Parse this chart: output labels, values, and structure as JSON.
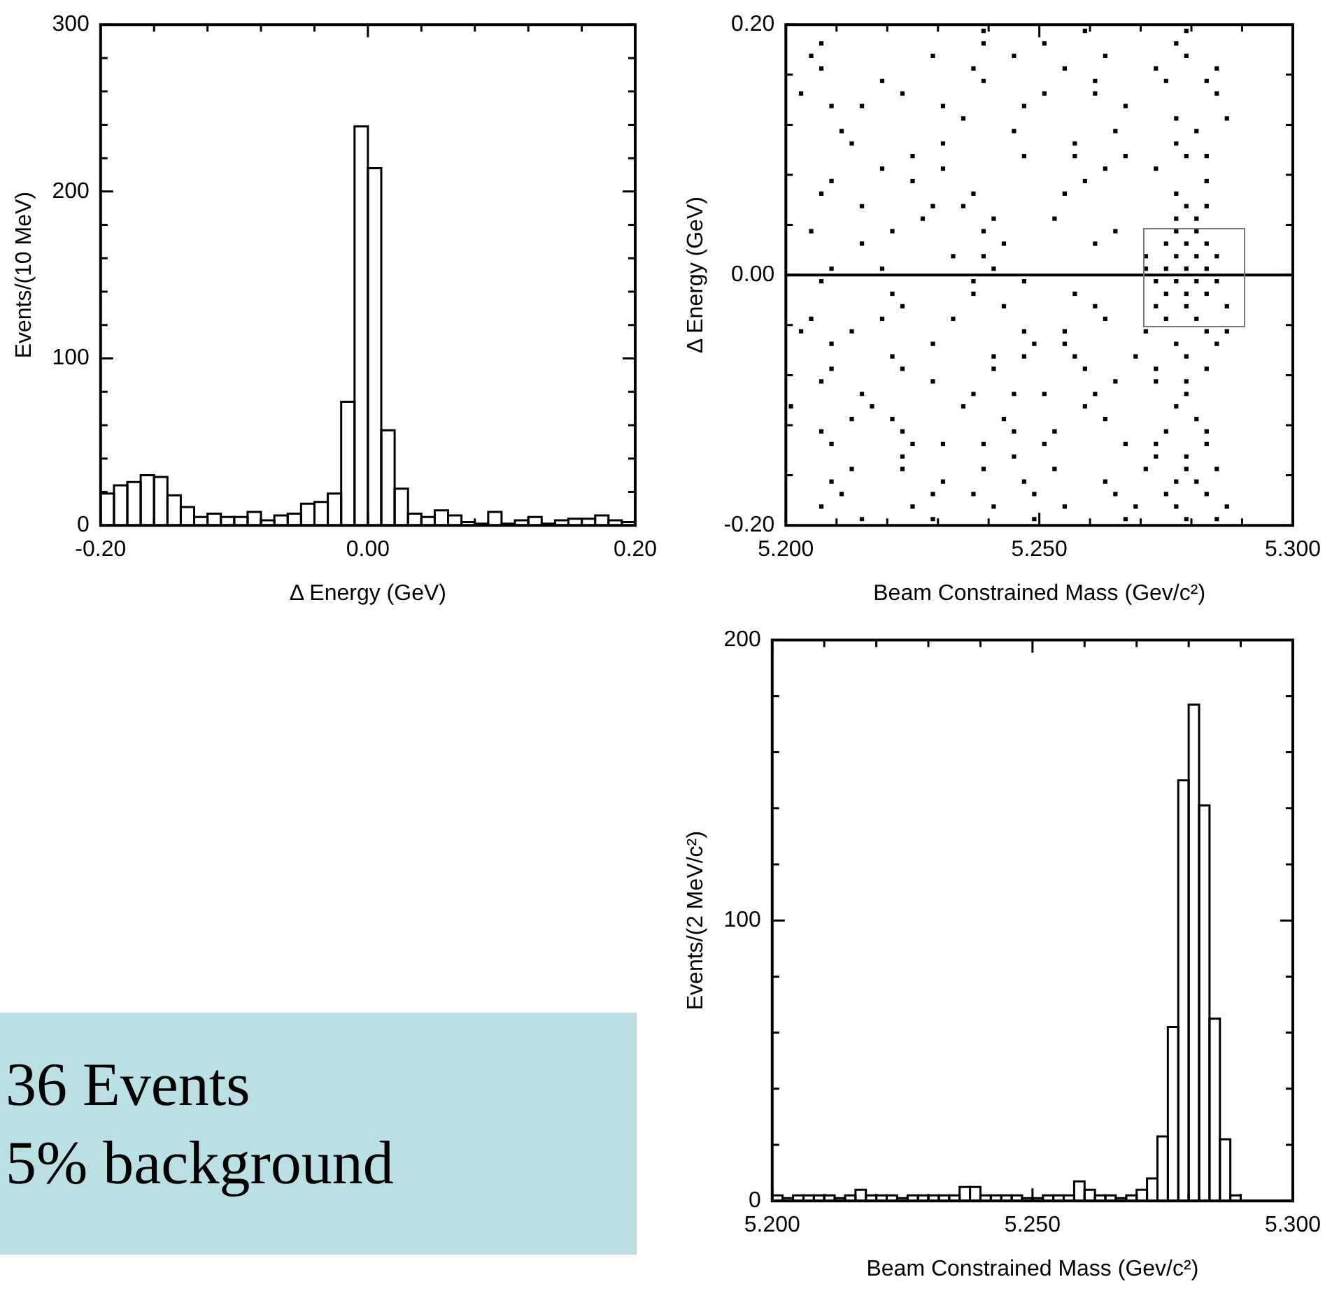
{
  "chart_data": [
    {
      "type": "histogram",
      "xlabel": "Δ Energy (GeV)",
      "ylabel": "Events/(10 MeV)",
      "color": "#000000",
      "bins": [
        -0.2,
        -0.19,
        -0.18,
        -0.17,
        -0.16,
        -0.15,
        -0.14,
        -0.13,
        -0.12,
        -0.11,
        -0.1,
        -0.09,
        -0.08,
        -0.07,
        -0.06,
        -0.05,
        -0.04,
        -0.03,
        -0.02,
        -0.01,
        0,
        0.01,
        0.02,
        0.03,
        0.04,
        0.05,
        0.06,
        0.07,
        0.08,
        0.09,
        0.1,
        0.11,
        0.12,
        0.13,
        0.14,
        0.15,
        0.16,
        0.17,
        0.18,
        0.19,
        0.2
      ],
      "values": [
        19,
        24,
        26,
        30,
        29,
        18,
        11,
        5,
        7,
        5,
        5,
        8,
        3,
        6,
        7,
        13,
        14,
        19,
        74,
        239,
        214,
        57,
        22,
        7,
        5,
        9,
        6,
        2,
        1,
        8,
        1,
        3,
        5,
        1,
        3,
        4,
        4,
        6,
        3,
        2
      ],
      "xlim": [
        -0.2,
        0.2
      ],
      "xticks": [
        {
          "value": -0.2,
          "label": "-0.20"
        },
        {
          "value": -0.16,
          "label": null
        },
        {
          "value": -0.12,
          "label": null
        },
        {
          "value": -0.08,
          "label": null
        },
        {
          "value": -0.04,
          "label": null
        },
        {
          "value": 0,
          "label": "0.00"
        },
        {
          "value": 0.04,
          "label": null
        },
        {
          "value": 0.08,
          "label": null
        },
        {
          "value": 0.12,
          "label": null
        },
        {
          "value": 0.16,
          "label": null
        },
        {
          "value": 0.2,
          "label": "0.20"
        }
      ],
      "ylim": [
        0,
        300
      ],
      "yticks": [
        0,
        {
          "value": 20,
          "label": null
        },
        {
          "value": 40,
          "label": null
        },
        {
          "value": 60,
          "label": null
        },
        {
          "value": 80,
          "label": null
        },
        100,
        {
          "value": 120,
          "label": null
        },
        {
          "value": 140,
          "label": null
        },
        {
          "value": 160,
          "label": null
        },
        {
          "value": 180,
          "label": null
        },
        200,
        {
          "value": 220,
          "label": null
        },
        {
          "value": 240,
          "label": null
        },
        {
          "value": 260,
          "label": null
        },
        {
          "value": 280,
          "label": null
        },
        300
      ]
    },
    {
      "type": "scatter",
      "xlabel": "Beam Constrained Mass (Gev/c²)",
      "ylabel": "Δ Energy (GeV)",
      "color": "#000000",
      "marker": "square",
      "x": [
        5.239,
        5.259,
        5.279,
        5.207,
        5.239,
        5.251,
        5.277,
        5.205,
        5.229,
        5.245,
        5.263,
        5.279,
        5.207,
        5.237,
        5.255,
        5.273,
        5.285,
        5.219,
        5.239,
        5.261,
        5.275,
        5.283,
        5.203,
        5.223,
        5.251,
        5.261,
        5.285,
        5.209,
        5.215,
        5.231,
        5.247,
        5.267,
        5.235,
        5.277,
        5.287,
        5.211,
        5.245,
        5.265,
        5.281,
        5.213,
        5.231,
        5.257,
        5.277,
        5.225,
        5.247,
        5.257,
        5.267,
        5.279,
        5.283,
        5.219,
        5.231,
        5.263,
        5.273,
        5.209,
        5.225,
        5.259,
        5.283,
        5.207,
        5.237,
        5.255,
        5.277,
        5.215,
        5.229,
        5.235,
        5.279,
        5.283,
        5.227,
        5.241,
        5.253,
        5.277,
        5.281,
        5.205,
        5.221,
        5.239,
        5.265,
        5.277,
        5.281,
        5.215,
        5.243,
        5.261,
        5.275,
        5.279,
        5.283,
        5.233,
        5.239,
        5.271,
        5.277,
        5.281,
        5.285,
        5.209,
        5.219,
        5.241,
        5.271,
        5.275,
        5.279,
        5.283,
        5.207,
        5.237,
        5.247,
        5.273,
        5.277,
        5.281,
        5.285,
        5.221,
        5.237,
        5.257,
        5.275,
        5.279,
        5.283,
        5.223,
        5.243,
        5.261,
        5.273,
        5.279,
        5.287,
        5.205,
        5.219,
        5.233,
        5.263,
        5.275,
        5.281,
        5.203,
        5.213,
        5.247,
        5.255,
        5.271,
        5.283,
        5.287,
        5.209,
        5.229,
        5.249,
        5.255,
        5.277,
        5.285,
        5.221,
        5.241,
        5.247,
        5.257,
        5.269,
        5.279,
        5.209,
        5.223,
        5.241,
        5.259,
        5.273,
        5.283,
        5.207,
        5.229,
        5.265,
        5.273,
        5.279,
        5.215,
        5.237,
        5.245,
        5.251,
        5.261,
        5.279,
        5.201,
        5.217,
        5.235,
        5.259,
        5.277,
        5.213,
        5.221,
        5.243,
        5.263,
        5.281,
        5.207,
        5.223,
        5.245,
        5.253,
        5.275,
        5.283,
        5.209,
        5.225,
        5.231,
        5.239,
        5.251,
        5.267,
        5.273,
        5.283,
        5.223,
        5.245,
        5.273,
        5.279,
        5.213,
        5.223,
        5.239,
        5.253,
        5.271,
        5.279,
        5.285,
        5.209,
        5.231,
        5.247,
        5.263,
        5.277,
        5.281,
        5.211,
        5.229,
        5.237,
        5.249,
        5.265,
        5.275,
        5.283,
        5.207,
        5.225,
        5.241,
        5.255,
        5.269,
        5.277,
        5.287,
        5.215,
        5.229,
        5.249,
        5.267,
        5.279,
        5.285
      ],
      "values": [
        0.195,
        0.195,
        0.195,
        0.185,
        0.185,
        0.185,
        0.185,
        0.175,
        0.175,
        0.175,
        0.175,
        0.175,
        0.165,
        0.165,
        0.165,
        0.165,
        0.165,
        0.155,
        0.155,
        0.155,
        0.155,
        0.155,
        0.145,
        0.145,
        0.145,
        0.145,
        0.145,
        0.135,
        0.135,
        0.135,
        0.135,
        0.135,
        0.125,
        0.125,
        0.125,
        0.115,
        0.115,
        0.115,
        0.115,
        0.105,
        0.105,
        0.105,
        0.105,
        0.095,
        0.095,
        0.095,
        0.095,
        0.095,
        0.095,
        0.085,
        0.085,
        0.085,
        0.085,
        0.075,
        0.075,
        0.075,
        0.075,
        0.065,
        0.065,
        0.065,
        0.065,
        0.055,
        0.055,
        0.055,
        0.055,
        0.055,
        0.045,
        0.045,
        0.045,
        0.045,
        0.045,
        0.035,
        0.035,
        0.035,
        0.035,
        0.035,
        0.035,
        0.025,
        0.025,
        0.025,
        0.025,
        0.025,
        0.025,
        0.015,
        0.015,
        0.015,
        0.015,
        0.015,
        0.015,
        0.005,
        0.005,
        0.005,
        0.005,
        0.005,
        0.005,
        0.005,
        -0.005,
        -0.005,
        -0.005,
        -0.005,
        -0.005,
        -0.005,
        -0.005,
        -0.015,
        -0.015,
        -0.015,
        -0.015,
        -0.015,
        -0.015,
        -0.025,
        -0.025,
        -0.025,
        -0.025,
        -0.025,
        -0.025,
        -0.035,
        -0.035,
        -0.035,
        -0.035,
        -0.035,
        -0.035,
        -0.045,
        -0.045,
        -0.045,
        -0.045,
        -0.045,
        -0.045,
        -0.045,
        -0.055,
        -0.055,
        -0.055,
        -0.055,
        -0.055,
        -0.055,
        -0.065,
        -0.065,
        -0.065,
        -0.065,
        -0.065,
        -0.065,
        -0.075,
        -0.075,
        -0.075,
        -0.075,
        -0.075,
        -0.075,
        -0.085,
        -0.085,
        -0.085,
        -0.085,
        -0.085,
        -0.095,
        -0.095,
        -0.095,
        -0.095,
        -0.095,
        -0.095,
        -0.105,
        -0.105,
        -0.105,
        -0.105,
        -0.105,
        -0.115,
        -0.115,
        -0.115,
        -0.115,
        -0.115,
        -0.125,
        -0.125,
        -0.125,
        -0.125,
        -0.125,
        -0.125,
        -0.135,
        -0.135,
        -0.135,
        -0.135,
        -0.135,
        -0.135,
        -0.135,
        -0.135,
        -0.145,
        -0.145,
        -0.145,
        -0.145,
        -0.155,
        -0.155,
        -0.155,
        -0.155,
        -0.155,
        -0.155,
        -0.155,
        -0.165,
        -0.165,
        -0.165,
        -0.165,
        -0.165,
        -0.165,
        -0.175,
        -0.175,
        -0.175,
        -0.175,
        -0.175,
        -0.175,
        -0.175,
        -0.185,
        -0.185,
        -0.185,
        -0.185,
        -0.185,
        -0.185,
        -0.185,
        -0.195,
        -0.195,
        -0.195,
        -0.195,
        -0.195,
        -0.195
      ],
      "xlim": [
        5.2,
        5.3
      ],
      "xticks": [
        {
          "value": 5.2,
          "label": "5.200"
        },
        {
          "value": 5.21,
          "label": null
        },
        {
          "value": 5.22,
          "label": null
        },
        {
          "value": 5.23,
          "label": null
        },
        {
          "value": 5.24,
          "label": null
        },
        {
          "value": 5.25,
          "label": "5.250"
        },
        {
          "value": 5.26,
          "label": null
        },
        {
          "value": 5.27,
          "label": null
        },
        {
          "value": 5.28,
          "label": null
        },
        {
          "value": 5.29,
          "label": null
        },
        {
          "value": 5.3,
          "label": "5.300"
        }
      ],
      "ylim": [
        -0.2,
        0.2
      ],
      "yticks": [
        {
          "value": -0.2,
          "label": "-0.20"
        },
        {
          "value": -0.16,
          "label": null
        },
        {
          "value": -0.12,
          "label": null
        },
        {
          "value": -0.08,
          "label": null
        },
        {
          "value": -0.04,
          "label": null
        },
        {
          "value": 0,
          "label": "0.00"
        },
        {
          "value": 0.04,
          "label": null
        },
        {
          "value": 0.08,
          "label": null
        },
        {
          "value": 0.12,
          "label": null
        },
        {
          "value": 0.16,
          "label": null
        },
        {
          "value": 0.2,
          "label": "0.20"
        }
      ],
      "ref_lines": [
        {
          "axis": "y",
          "value": 0,
          "color": "#000000"
        }
      ]
    },
    {
      "type": "histogram",
      "xlabel": "Beam Constrained Mass (Gev/c²)",
      "ylabel": "Events/(2 MeV/c²)",
      "color": "#000000",
      "bins": [
        5.2,
        5.202,
        5.204,
        5.206,
        5.208,
        5.21,
        5.212,
        5.214,
        5.216,
        5.218,
        5.22,
        5.222,
        5.224,
        5.226,
        5.228,
        5.23,
        5.232,
        5.234,
        5.236,
        5.238,
        5.24,
        5.242,
        5.244,
        5.246,
        5.248,
        5.25,
        5.252,
        5.254,
        5.256,
        5.258,
        5.26,
        5.262,
        5.264,
        5.266,
        5.268,
        5.27,
        5.272,
        5.274,
        5.276,
        5.278,
        5.28,
        5.282,
        5.284,
        5.286,
        5.288,
        5.29,
        5.292,
        5.294,
        5.296,
        5.298,
        5.3
      ],
      "values": [
        2,
        1,
        2,
        2,
        2,
        2,
        1,
        2,
        4,
        2,
        2,
        2,
        1,
        2,
        2,
        2,
        2,
        2,
        5,
        5,
        2,
        2,
        2,
        2,
        1,
        1,
        2,
        2,
        2,
        7,
        4,
        2,
        2,
        1,
        2,
        4,
        8,
        23,
        62,
        150,
        177,
        141,
        65,
        22,
        2,
        0,
        0,
        0,
        0,
        0
      ],
      "xlim": [
        5.2,
        5.3
      ],
      "xticks": [
        {
          "value": 5.2,
          "label": "5.200"
        },
        {
          "value": 5.21,
          "label": null
        },
        {
          "value": 5.22,
          "label": null
        },
        {
          "value": 5.23,
          "label": null
        },
        {
          "value": 5.24,
          "label": null
        },
        {
          "value": 5.25,
          "label": "5.250"
        },
        {
          "value": 5.26,
          "label": null
        },
        {
          "value": 5.27,
          "label": null
        },
        {
          "value": 5.28,
          "label": null
        },
        {
          "value": 5.29,
          "label": null
        },
        {
          "value": 5.3,
          "label": "5.300"
        }
      ],
      "ylim": [
        0,
        200
      ],
      "yticks": [
        0,
        {
          "value": 20,
          "label": null
        },
        {
          "value": 40,
          "label": null
        },
        {
          "value": 60,
          "label": null
        },
        {
          "value": 80,
          "label": null
        },
        100,
        {
          "value": 120,
          "label": null
        },
        {
          "value": 140,
          "label": null
        },
        {
          "value": 160,
          "label": null
        },
        {
          "value": 180,
          "label": null
        },
        200
      ]
    },
    {
      "type": "other",
      "annotations": [
        "36 Events",
        "5% background"
      ]
    }
  ]
}
